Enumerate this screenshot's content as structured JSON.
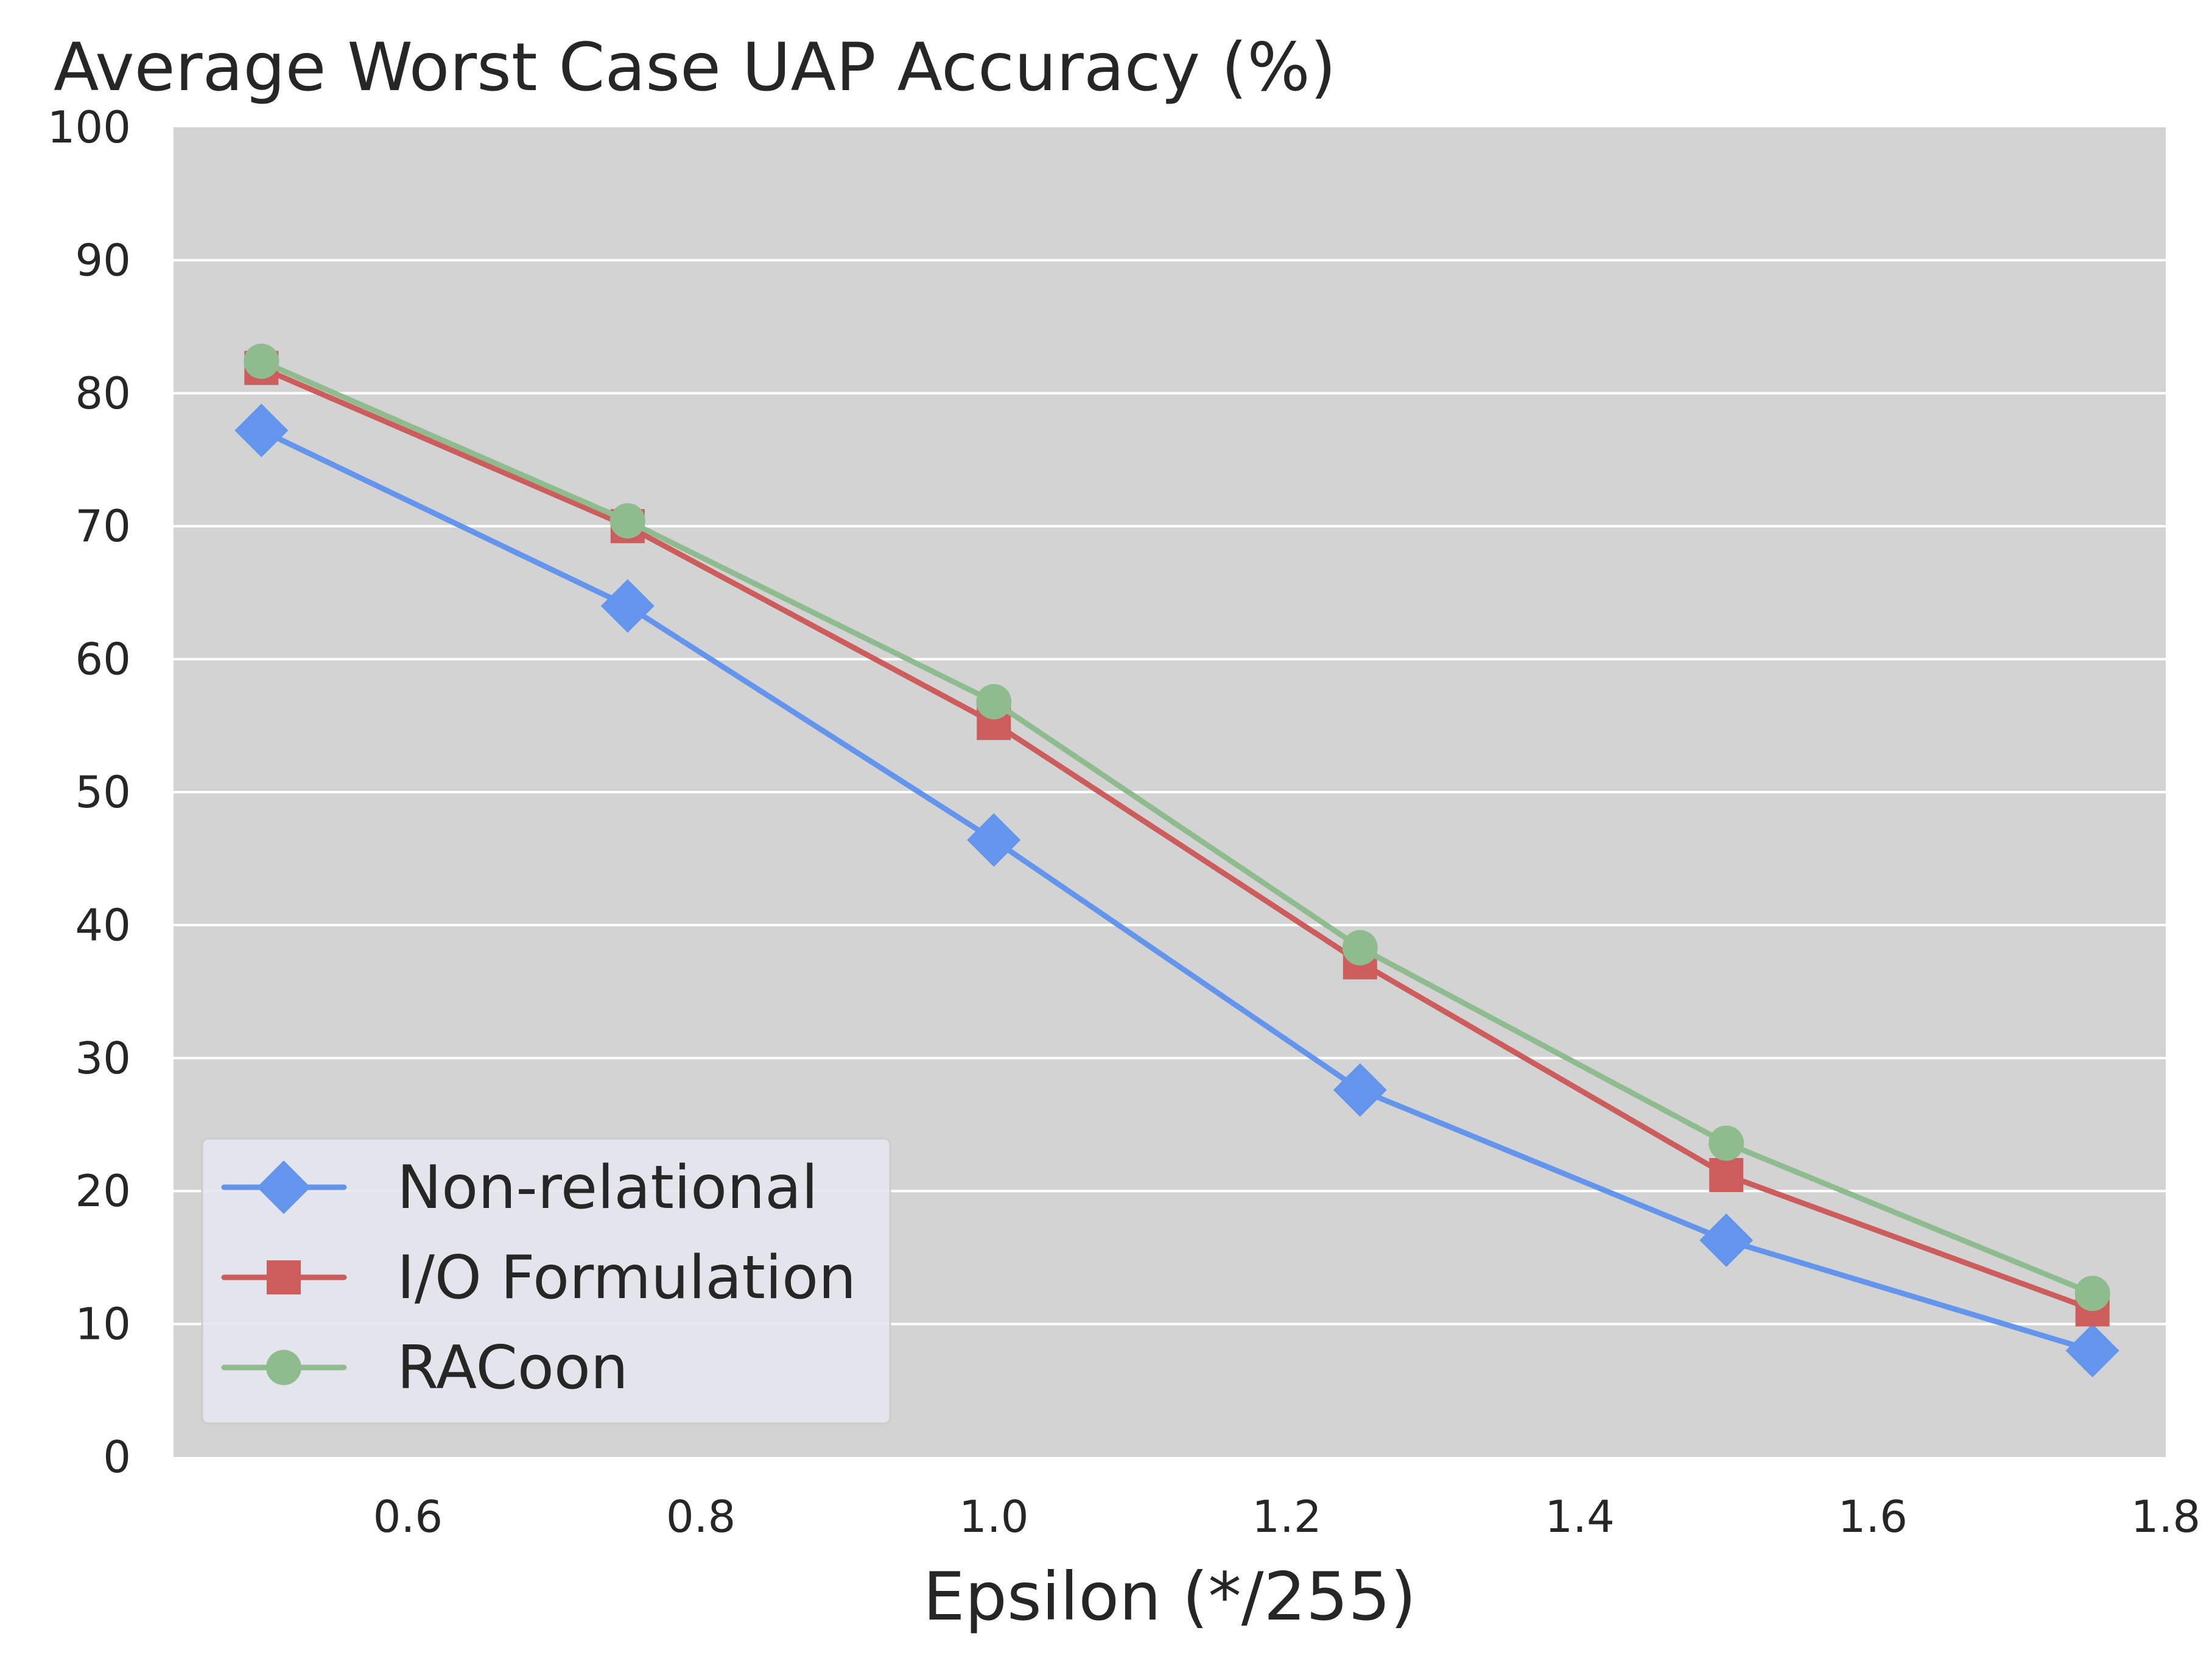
{
  "chart_data": {
    "type": "line",
    "title": "Average Worst Case UAP Accuracy (%)",
    "xlabel": "Epsilon (*/255)",
    "ylabel": "",
    "xlim": [
      0.44,
      1.8
    ],
    "ylim": [
      0,
      100
    ],
    "xticks": [
      0.6,
      0.8,
      1.0,
      1.2,
      1.4,
      1.6,
      1.8
    ],
    "xtick_labels": [
      "0.6",
      "0.8",
      "1.0",
      "1.2",
      "1.4",
      "1.6",
      "1.8"
    ],
    "yticks": [
      0,
      10,
      20,
      30,
      40,
      50,
      60,
      70,
      80,
      90,
      100
    ],
    "ytick_labels": [
      "0",
      "10",
      "20",
      "30",
      "40",
      "50",
      "60",
      "70",
      "80",
      "90",
      "100"
    ],
    "grid": true,
    "legend_position": "bottom-left",
    "x": [
      0.5,
      0.75,
      1.0,
      1.25,
      1.5,
      1.75
    ],
    "series": [
      {
        "name": "Non-relational",
        "marker": "diamond",
        "color": "#6495ED",
        "values": [
          77.2,
          64.0,
          46.4,
          27.6,
          16.3,
          8.0
        ]
      },
      {
        "name": "I/O Formulation",
        "marker": "square",
        "color": "#CD5C5C",
        "values": [
          81.9,
          70.0,
          55.2,
          37.2,
          21.2,
          11.1
        ]
      },
      {
        "name": "RACoon",
        "marker": "circle",
        "color": "#8FBC8F",
        "values": [
          82.4,
          70.4,
          56.8,
          38.3,
          23.6,
          12.3
        ]
      }
    ]
  },
  "colors": {
    "plot_background": "#D3D3D3",
    "grid": "#FFFFFF",
    "legend_background": "#E5E5EE",
    "text": "#262626"
  }
}
